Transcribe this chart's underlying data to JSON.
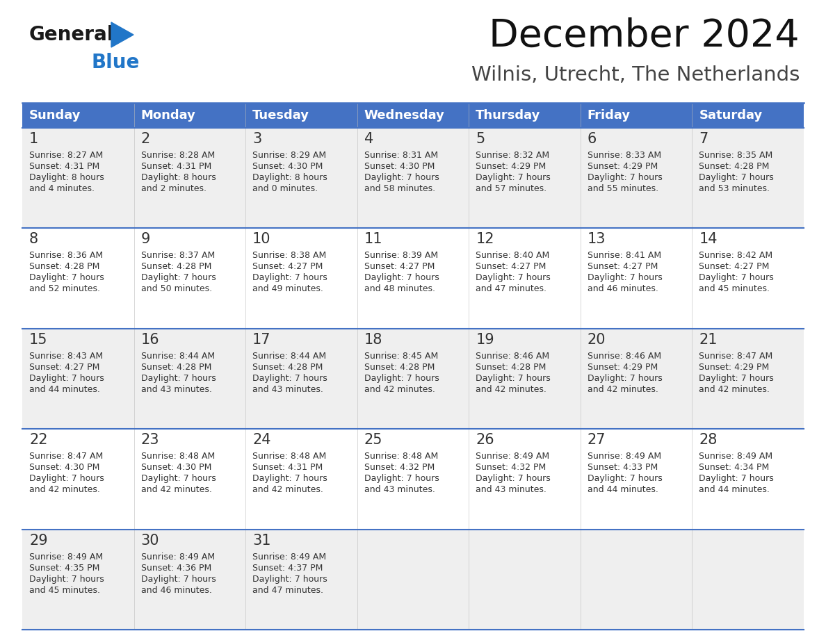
{
  "title": "December 2024",
  "subtitle": "Wilnis, Utrecht, The Netherlands",
  "header_bg_color": "#4472C4",
  "header_text_color": "#FFFFFF",
  "row_bg_odd": "#EFEFEF",
  "row_bg_even": "#FFFFFF",
  "day_number_color": "#333333",
  "cell_text_color": "#333333",
  "grid_line_color": "#4472C4",
  "days_of_week": [
    "Sunday",
    "Monday",
    "Tuesday",
    "Wednesday",
    "Thursday",
    "Friday",
    "Saturday"
  ],
  "weeks": [
    [
      {
        "day": "1",
        "sunrise": "8:27 AM",
        "sunset": "4:31 PM",
        "daylight_line1": "Daylight: 8 hours",
        "daylight_line2": "and 4 minutes."
      },
      {
        "day": "2",
        "sunrise": "8:28 AM",
        "sunset": "4:31 PM",
        "daylight_line1": "Daylight: 8 hours",
        "daylight_line2": "and 2 minutes."
      },
      {
        "day": "3",
        "sunrise": "8:29 AM",
        "sunset": "4:30 PM",
        "daylight_line1": "Daylight: 8 hours",
        "daylight_line2": "and 0 minutes."
      },
      {
        "day": "4",
        "sunrise": "8:31 AM",
        "sunset": "4:30 PM",
        "daylight_line1": "Daylight: 7 hours",
        "daylight_line2": "and 58 minutes."
      },
      {
        "day": "5",
        "sunrise": "8:32 AM",
        "sunset": "4:29 PM",
        "daylight_line1": "Daylight: 7 hours",
        "daylight_line2": "and 57 minutes."
      },
      {
        "day": "6",
        "sunrise": "8:33 AM",
        "sunset": "4:29 PM",
        "daylight_line1": "Daylight: 7 hours",
        "daylight_line2": "and 55 minutes."
      },
      {
        "day": "7",
        "sunrise": "8:35 AM",
        "sunset": "4:28 PM",
        "daylight_line1": "Daylight: 7 hours",
        "daylight_line2": "and 53 minutes."
      }
    ],
    [
      {
        "day": "8",
        "sunrise": "8:36 AM",
        "sunset": "4:28 PM",
        "daylight_line1": "Daylight: 7 hours",
        "daylight_line2": "and 52 minutes."
      },
      {
        "day": "9",
        "sunrise": "8:37 AM",
        "sunset": "4:28 PM",
        "daylight_line1": "Daylight: 7 hours",
        "daylight_line2": "and 50 minutes."
      },
      {
        "day": "10",
        "sunrise": "8:38 AM",
        "sunset": "4:27 PM",
        "daylight_line1": "Daylight: 7 hours",
        "daylight_line2": "and 49 minutes."
      },
      {
        "day": "11",
        "sunrise": "8:39 AM",
        "sunset": "4:27 PM",
        "daylight_line1": "Daylight: 7 hours",
        "daylight_line2": "and 48 minutes."
      },
      {
        "day": "12",
        "sunrise": "8:40 AM",
        "sunset": "4:27 PM",
        "daylight_line1": "Daylight: 7 hours",
        "daylight_line2": "and 47 minutes."
      },
      {
        "day": "13",
        "sunrise": "8:41 AM",
        "sunset": "4:27 PM",
        "daylight_line1": "Daylight: 7 hours",
        "daylight_line2": "and 46 minutes."
      },
      {
        "day": "14",
        "sunrise": "8:42 AM",
        "sunset": "4:27 PM",
        "daylight_line1": "Daylight: 7 hours",
        "daylight_line2": "and 45 minutes."
      }
    ],
    [
      {
        "day": "15",
        "sunrise": "8:43 AM",
        "sunset": "4:27 PM",
        "daylight_line1": "Daylight: 7 hours",
        "daylight_line2": "and 44 minutes."
      },
      {
        "day": "16",
        "sunrise": "8:44 AM",
        "sunset": "4:28 PM",
        "daylight_line1": "Daylight: 7 hours",
        "daylight_line2": "and 43 minutes."
      },
      {
        "day": "17",
        "sunrise": "8:44 AM",
        "sunset": "4:28 PM",
        "daylight_line1": "Daylight: 7 hours",
        "daylight_line2": "and 43 minutes."
      },
      {
        "day": "18",
        "sunrise": "8:45 AM",
        "sunset": "4:28 PM",
        "daylight_line1": "Daylight: 7 hours",
        "daylight_line2": "and 42 minutes."
      },
      {
        "day": "19",
        "sunrise": "8:46 AM",
        "sunset": "4:28 PM",
        "daylight_line1": "Daylight: 7 hours",
        "daylight_line2": "and 42 minutes."
      },
      {
        "day": "20",
        "sunrise": "8:46 AM",
        "sunset": "4:29 PM",
        "daylight_line1": "Daylight: 7 hours",
        "daylight_line2": "and 42 minutes."
      },
      {
        "day": "21",
        "sunrise": "8:47 AM",
        "sunset": "4:29 PM",
        "daylight_line1": "Daylight: 7 hours",
        "daylight_line2": "and 42 minutes."
      }
    ],
    [
      {
        "day": "22",
        "sunrise": "8:47 AM",
        "sunset": "4:30 PM",
        "daylight_line1": "Daylight: 7 hours",
        "daylight_line2": "and 42 minutes."
      },
      {
        "day": "23",
        "sunrise": "8:48 AM",
        "sunset": "4:30 PM",
        "daylight_line1": "Daylight: 7 hours",
        "daylight_line2": "and 42 minutes."
      },
      {
        "day": "24",
        "sunrise": "8:48 AM",
        "sunset": "4:31 PM",
        "daylight_line1": "Daylight: 7 hours",
        "daylight_line2": "and 42 minutes."
      },
      {
        "day": "25",
        "sunrise": "8:48 AM",
        "sunset": "4:32 PM",
        "daylight_line1": "Daylight: 7 hours",
        "daylight_line2": "and 43 minutes."
      },
      {
        "day": "26",
        "sunrise": "8:49 AM",
        "sunset": "4:32 PM",
        "daylight_line1": "Daylight: 7 hours",
        "daylight_line2": "and 43 minutes."
      },
      {
        "day": "27",
        "sunrise": "8:49 AM",
        "sunset": "4:33 PM",
        "daylight_line1": "Daylight: 7 hours",
        "daylight_line2": "and 44 minutes."
      },
      {
        "day": "28",
        "sunrise": "8:49 AM",
        "sunset": "4:34 PM",
        "daylight_line1": "Daylight: 7 hours",
        "daylight_line2": "and 44 minutes."
      }
    ],
    [
      {
        "day": "29",
        "sunrise": "8:49 AM",
        "sunset": "4:35 PM",
        "daylight_line1": "Daylight: 7 hours",
        "daylight_line2": "and 45 minutes."
      },
      {
        "day": "30",
        "sunrise": "8:49 AM",
        "sunset": "4:36 PM",
        "daylight_line1": "Daylight: 7 hours",
        "daylight_line2": "and 46 minutes."
      },
      {
        "day": "31",
        "sunrise": "8:49 AM",
        "sunset": "4:37 PM",
        "daylight_line1": "Daylight: 7 hours",
        "daylight_line2": "and 47 minutes."
      },
      null,
      null,
      null,
      null
    ]
  ],
  "logo_color_general": "#1a1a1a",
  "logo_color_blue": "#2176C8",
  "logo_triangle_color": "#2176C8",
  "title_color": "#111111",
  "subtitle_color": "#444444",
  "fig_width": 11.88,
  "fig_height": 9.18,
  "dpi": 100
}
